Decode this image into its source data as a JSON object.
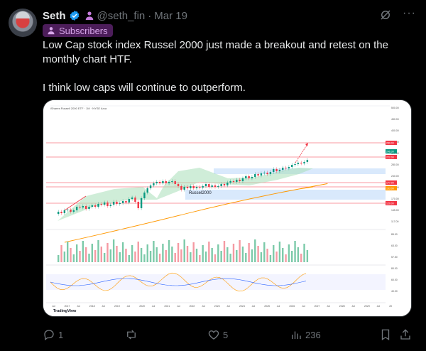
{
  "post": {
    "author_name": "Seth",
    "handle": "@seth_fin",
    "separator": "·",
    "date": "Mar 19",
    "badge_label": "Subscribers",
    "text_line1": "Low Cap stock index Russel 2000 just made a breakout and retest on the monthly chart HTF.",
    "text_line2": "I think low caps will continue to outperform."
  },
  "chart": {
    "header_text": "iShares Russell 2000 ETF · 1M · NYSE Arca",
    "annotation": "Russel2000",
    "watermark": "TradingView",
    "x_ticks": [
      "Jul",
      "2017",
      "Jul",
      "2018",
      "Jul",
      "2019",
      "Jul",
      "2020",
      "Jul",
      "2021",
      "Jul",
      "2022",
      "Jul",
      "2023",
      "Jul",
      "2024",
      "Jul",
      "2025",
      "Jul",
      "2026",
      "Jul",
      "2027",
      "Jul",
      "2028",
      "Jul",
      "2029",
      "Jul",
      "20"
    ],
    "price_ticks": [
      "500.00",
      "450.00",
      "400.00",
      "360.00",
      "320.00",
      "280.00",
      "240.00",
      "200.00",
      "170.00",
      "145.00",
      "117.00"
    ],
    "volume_ticks": [
      "85.00",
      "63.00",
      "57.50"
    ],
    "osc_ticks": [
      "80.00",
      "60.00",
      "40.00"
    ],
    "price_tags": [
      {
        "label": "280.00",
        "color": "#f23645"
      },
      {
        "label": "246.30",
        "color": "#089981"
      },
      {
        "label": "222.00",
        "color": "#f23645"
      },
      {
        "label": "177.00",
        "color": "#f23645"
      },
      {
        "label": "153.00",
        "color": "#ff9800"
      },
      {
        "label": "120.00",
        "color": "#f23645"
      }
    ]
  },
  "actions": {
    "replies": "1",
    "reposts": "",
    "likes": "5",
    "views": "236"
  },
  "colors": {
    "badge_bg": "#4c1d5a",
    "badge_text": "#d7a6ea",
    "verified": "#1d9bf0",
    "muted": "#71767b"
  }
}
